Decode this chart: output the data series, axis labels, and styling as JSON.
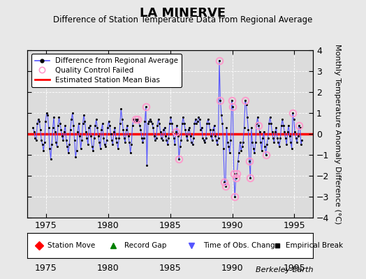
{
  "title": "LA MINERVE",
  "subtitle": "Difference of Station Temperature Data from Regional Average",
  "ylabel": "Monthly Temperature Anomaly Difference (°C)",
  "xlabel_bottom": "Berkeley Earth",
  "xlim": [
    1973.5,
    1996.5
  ],
  "ylim": [
    -4,
    4
  ],
  "yticks": [
    -4,
    -3,
    -2,
    -1,
    0,
    1,
    2,
    3,
    4
  ],
  "xticks": [
    1975,
    1980,
    1985,
    1990,
    1995
  ],
  "bias": 0.0,
  "fig_bg_color": "#e8e8e8",
  "plot_bg_color": "#dcdcdc",
  "line_color": "#5555ff",
  "bias_color": "#ff0000",
  "qc_color": "#ff99cc",
  "grid_color": "#ffffff",
  "data": [
    [
      1973.958,
      0.3
    ],
    [
      1974.042,
      0.1
    ],
    [
      1974.125,
      -0.2
    ],
    [
      1974.208,
      -0.3
    ],
    [
      1974.292,
      0.5
    ],
    [
      1974.375,
      0.7
    ],
    [
      1974.458,
      0.6
    ],
    [
      1974.542,
      0.2
    ],
    [
      1974.625,
      -0.3
    ],
    [
      1974.708,
      -0.5
    ],
    [
      1974.792,
      -0.8
    ],
    [
      1974.875,
      -0.4
    ],
    [
      1974.958,
      0.6
    ],
    [
      1975.042,
      1.0
    ],
    [
      1975.125,
      0.9
    ],
    [
      1975.208,
      0.3
    ],
    [
      1975.292,
      -0.7
    ],
    [
      1975.375,
      -1.2
    ],
    [
      1975.458,
      -0.5
    ],
    [
      1975.542,
      0.3
    ],
    [
      1975.625,
      0.8
    ],
    [
      1975.708,
      0.1
    ],
    [
      1975.792,
      -0.4
    ],
    [
      1975.875,
      -0.6
    ],
    [
      1975.958,
      0.4
    ],
    [
      1976.042,
      0.8
    ],
    [
      1976.125,
      0.5
    ],
    [
      1976.208,
      0.2
    ],
    [
      1976.292,
      -0.1
    ],
    [
      1976.375,
      -0.3
    ],
    [
      1976.458,
      0.1
    ],
    [
      1976.542,
      0.4
    ],
    [
      1976.625,
      -0.3
    ],
    [
      1976.708,
      -0.6
    ],
    [
      1976.792,
      -0.9
    ],
    [
      1976.875,
      -0.5
    ],
    [
      1976.958,
      0.2
    ],
    [
      1977.042,
      0.7
    ],
    [
      1977.125,
      1.0
    ],
    [
      1977.208,
      0.4
    ],
    [
      1977.292,
      -0.3
    ],
    [
      1977.375,
      -1.1
    ],
    [
      1977.458,
      -0.8
    ],
    [
      1977.542,
      0.1
    ],
    [
      1977.625,
      0.5
    ],
    [
      1977.708,
      -0.1
    ],
    [
      1977.792,
      -0.7
    ],
    [
      1977.875,
      -0.3
    ],
    [
      1977.958,
      0.5
    ],
    [
      1978.042,
      0.9
    ],
    [
      1978.125,
      0.6
    ],
    [
      1978.208,
      0.1
    ],
    [
      1978.292,
      -0.2
    ],
    [
      1978.375,
      -0.5
    ],
    [
      1978.458,
      0.3
    ],
    [
      1978.542,
      0.4
    ],
    [
      1978.625,
      -0.1
    ],
    [
      1978.708,
      -0.6
    ],
    [
      1978.792,
      -0.8
    ],
    [
      1978.875,
      -0.2
    ],
    [
      1978.958,
      0.4
    ],
    [
      1979.042,
      0.7
    ],
    [
      1979.125,
      0.3
    ],
    [
      1979.208,
      -0.1
    ],
    [
      1979.292,
      -0.4
    ],
    [
      1979.375,
      -0.7
    ],
    [
      1979.458,
      0.2
    ],
    [
      1979.542,
      0.5
    ],
    [
      1979.625,
      -0.2
    ],
    [
      1979.708,
      -0.5
    ],
    [
      1979.792,
      -0.6
    ],
    [
      1979.875,
      -0.3
    ],
    [
      1979.958,
      0.3
    ],
    [
      1980.042,
      0.6
    ],
    [
      1980.125,
      0.4
    ],
    [
      1980.208,
      0.0
    ],
    [
      1980.292,
      -0.3
    ],
    [
      1980.375,
      -0.5
    ],
    [
      1980.458,
      0.1
    ],
    [
      1980.542,
      0.3
    ],
    [
      1980.625,
      -0.2
    ],
    [
      1980.708,
      -0.4
    ],
    [
      1980.792,
      -0.7
    ],
    [
      1980.875,
      -0.2
    ],
    [
      1980.958,
      0.5
    ],
    [
      1981.042,
      1.2
    ],
    [
      1981.125,
      0.7
    ],
    [
      1981.208,
      0.2
    ],
    [
      1981.292,
      -0.2
    ],
    [
      1981.375,
      -0.4
    ],
    [
      1981.458,
      0.2
    ],
    [
      1981.542,
      0.4
    ],
    [
      1981.625,
      -0.1
    ],
    [
      1981.708,
      -0.4
    ],
    [
      1981.792,
      -0.9
    ],
    [
      1981.875,
      -0.5
    ],
    [
      1981.958,
      0.4
    ],
    [
      1982.042,
      0.7
    ],
    [
      1982.125,
      0.6
    ],
    [
      1982.208,
      0.7
    ],
    [
      1982.292,
      0.6
    ],
    [
      1982.375,
      0.7
    ],
    [
      1982.458,
      0.6
    ],
    [
      1982.542,
      0.4
    ],
    [
      1982.625,
      0.2
    ],
    [
      1982.708,
      -0.2
    ],
    [
      1982.792,
      -0.4
    ],
    [
      1982.875,
      -0.2
    ],
    [
      1982.958,
      0.6
    ],
    [
      1983.042,
      1.3
    ],
    [
      1983.125,
      -1.5
    ],
    [
      1983.208,
      0.5
    ],
    [
      1983.292,
      0.6
    ],
    [
      1983.375,
      0.7
    ],
    [
      1983.458,
      0.6
    ],
    [
      1983.542,
      0.5
    ],
    [
      1983.625,
      0.3
    ],
    [
      1983.708,
      -0.1
    ],
    [
      1983.792,
      -0.3
    ],
    [
      1983.875,
      -0.2
    ],
    [
      1983.958,
      0.4
    ],
    [
      1984.042,
      0.7
    ],
    [
      1984.125,
      0.5
    ],
    [
      1984.208,
      0.1
    ],
    [
      1984.292,
      -0.2
    ],
    [
      1984.375,
      -0.3
    ],
    [
      1984.458,
      0.2
    ],
    [
      1984.542,
      0.3
    ],
    [
      1984.625,
      -0.1
    ],
    [
      1984.708,
      -0.3
    ],
    [
      1984.792,
      -0.5
    ],
    [
      1984.875,
      -0.2
    ],
    [
      1984.958,
      0.5
    ],
    [
      1985.042,
      0.8
    ],
    [
      1985.125,
      0.5
    ],
    [
      1985.208,
      0.1
    ],
    [
      1985.292,
      -0.2
    ],
    [
      1985.375,
      -0.5
    ],
    [
      1985.458,
      0.1
    ],
    [
      1985.542,
      0.4
    ],
    [
      1985.625,
      -0.1
    ],
    [
      1985.708,
      -1.2
    ],
    [
      1985.792,
      -0.6
    ],
    [
      1985.875,
      -0.3
    ],
    [
      1985.958,
      0.5
    ],
    [
      1986.042,
      0.8
    ],
    [
      1986.125,
      0.5
    ],
    [
      1986.208,
      0.2
    ],
    [
      1986.292,
      -0.1
    ],
    [
      1986.375,
      -0.3
    ],
    [
      1986.458,
      0.2
    ],
    [
      1986.542,
      0.3
    ],
    [
      1986.625,
      -0.1
    ],
    [
      1986.708,
      -0.4
    ],
    [
      1986.792,
      -0.5
    ],
    [
      1986.875,
      -0.2
    ],
    [
      1986.958,
      0.5
    ],
    [
      1987.042,
      0.7
    ],
    [
      1987.125,
      0.5
    ],
    [
      1987.208,
      0.6
    ],
    [
      1987.292,
      0.8
    ],
    [
      1987.375,
      0.7
    ],
    [
      1987.458,
      0.2
    ],
    [
      1987.542,
      0.3
    ],
    [
      1987.625,
      -0.2
    ],
    [
      1987.708,
      -0.3
    ],
    [
      1987.792,
      -0.4
    ],
    [
      1987.875,
      -0.2
    ],
    [
      1987.958,
      0.5
    ],
    [
      1988.042,
      0.7
    ],
    [
      1988.125,
      0.5
    ],
    [
      1988.208,
      0.2
    ],
    [
      1988.292,
      -0.1
    ],
    [
      1988.375,
      -0.3
    ],
    [
      1988.458,
      0.2
    ],
    [
      1988.542,
      0.4
    ],
    [
      1988.625,
      -0.1
    ],
    [
      1988.708,
      -0.3
    ],
    [
      1988.792,
      -0.5
    ],
    [
      1988.875,
      -0.2
    ],
    [
      1988.958,
      3.5
    ],
    [
      1989.042,
      1.6
    ],
    [
      1989.125,
      0.9
    ],
    [
      1989.208,
      0.5
    ],
    [
      1989.292,
      -0.7
    ],
    [
      1989.375,
      -2.3
    ],
    [
      1989.458,
      -2.5
    ],
    [
      1989.542,
      0.3
    ],
    [
      1989.625,
      -0.4
    ],
    [
      1989.708,
      -0.6
    ],
    [
      1989.792,
      -0.9
    ],
    [
      1989.875,
      -0.3
    ],
    [
      1989.958,
      1.6
    ],
    [
      1990.042,
      1.3
    ],
    [
      1990.125,
      -1.9
    ],
    [
      1990.208,
      -3.0
    ],
    [
      1990.292,
      -2.1
    ],
    [
      1990.375,
      -1.9
    ],
    [
      1990.458,
      -1.3
    ],
    [
      1990.542,
      -0.9
    ],
    [
      1990.625,
      -0.4
    ],
    [
      1990.708,
      -0.8
    ],
    [
      1990.792,
      -0.6
    ],
    [
      1990.875,
      -0.4
    ],
    [
      1990.958,
      0.3
    ],
    [
      1991.042,
      1.6
    ],
    [
      1991.125,
      1.4
    ],
    [
      1991.208,
      0.8
    ],
    [
      1991.292,
      0.2
    ],
    [
      1991.375,
      -1.3
    ],
    [
      1991.458,
      -2.1
    ],
    [
      1991.542,
      0.3
    ],
    [
      1991.625,
      -0.4
    ],
    [
      1991.708,
      -0.7
    ],
    [
      1991.792,
      -0.9
    ],
    [
      1991.875,
      -0.4
    ],
    [
      1991.958,
      0.5
    ],
    [
      1992.042,
      0.8
    ],
    [
      1992.125,
      0.4
    ],
    [
      1992.208,
      0.1
    ],
    [
      1992.292,
      -0.4
    ],
    [
      1992.375,
      -0.8
    ],
    [
      1992.458,
      -0.2
    ],
    [
      1992.542,
      0.1
    ],
    [
      1992.625,
      -0.6
    ],
    [
      1992.708,
      -1.0
    ],
    [
      1992.792,
      -0.5
    ],
    [
      1992.875,
      -0.2
    ],
    [
      1992.958,
      0.5
    ],
    [
      1993.042,
      0.8
    ],
    [
      1993.125,
      0.5
    ],
    [
      1993.208,
      0.1
    ],
    [
      1993.292,
      -0.2
    ],
    [
      1993.375,
      -0.4
    ],
    [
      1993.458,
      0.1
    ],
    [
      1993.542,
      0.3
    ],
    [
      1993.625,
      -0.2
    ],
    [
      1993.708,
      -0.4
    ],
    [
      1993.792,
      -0.6
    ],
    [
      1993.875,
      -0.2
    ],
    [
      1993.958,
      0.4
    ],
    [
      1994.042,
      0.7
    ],
    [
      1994.125,
      0.4
    ],
    [
      1994.208,
      0.1
    ],
    [
      1994.292,
      -0.2
    ],
    [
      1994.375,
      -0.5
    ],
    [
      1994.458,
      0.1
    ],
    [
      1994.542,
      0.4
    ],
    [
      1994.625,
      -0.1
    ],
    [
      1994.708,
      -0.4
    ],
    [
      1994.792,
      -0.7
    ],
    [
      1994.875,
      1.0
    ],
    [
      1994.958,
      0.7
    ],
    [
      1995.042,
      0.1
    ],
    [
      1995.125,
      -0.2
    ],
    [
      1995.208,
      -0.4
    ],
    [
      1995.292,
      -0.1
    ],
    [
      1995.375,
      0.4
    ],
    [
      1995.458,
      0.3
    ],
    [
      1995.542,
      -0.5
    ],
    [
      1995.625,
      -0.3
    ]
  ],
  "qc_points": [
    [
      1982.208,
      0.7
    ],
    [
      1982.375,
      0.7
    ],
    [
      1983.042,
      1.3
    ],
    [
      1985.458,
      0.1
    ],
    [
      1985.708,
      -1.2
    ],
    [
      1988.958,
      3.5
    ],
    [
      1989.042,
      1.6
    ],
    [
      1989.375,
      -2.3
    ],
    [
      1989.458,
      -2.5
    ],
    [
      1989.958,
      1.6
    ],
    [
      1990.042,
      1.3
    ],
    [
      1990.125,
      -1.9
    ],
    [
      1990.208,
      -3.0
    ],
    [
      1990.292,
      -2.1
    ],
    [
      1990.375,
      -1.9
    ],
    [
      1991.042,
      1.6
    ],
    [
      1991.375,
      -1.3
    ],
    [
      1991.458,
      -2.1
    ],
    [
      1992.125,
      0.4
    ],
    [
      1992.708,
      -1.0
    ],
    [
      1994.875,
      1.0
    ],
    [
      1995.375,
      0.4
    ]
  ]
}
